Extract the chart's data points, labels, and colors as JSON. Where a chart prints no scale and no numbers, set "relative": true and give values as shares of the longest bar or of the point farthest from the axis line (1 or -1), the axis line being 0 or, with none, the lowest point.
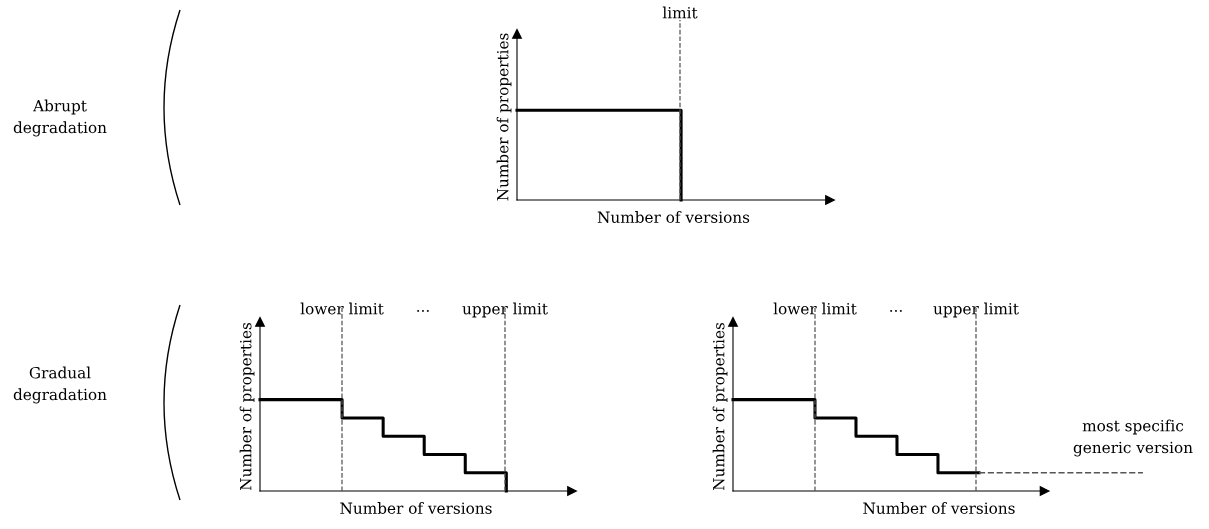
{
  "chart_data": [
    {
      "type": "step",
      "relative": true,
      "xlabel": "Number of versions",
      "ylabel": "Number of properties",
      "categories": [
        null,
        null,
        null,
        null,
        null
      ],
      "series": [
        {
          "color": "#000000",
          "values": [
            1,
            1,
            1,
            1,
            0
          ]
        }
      ],
      "annotations": [
        "Abrupt\ndegradation",
        "limit"
      ]
    },
    {
      "type": "step",
      "relative": true,
      "xlabel": "Number of versions",
      "ylabel": "Number of properties",
      "categories": [
        null,
        null,
        null,
        null,
        null,
        null,
        null
      ],
      "series": [
        {
          "color": "#000000",
          "values": [
            1,
            1,
            0.8,
            0.6,
            0.4,
            0.2,
            0
          ]
        }
      ],
      "annotations": [
        "Gradual\ndegradation",
        "lower limit",
        "···",
        "upper limit"
      ]
    },
    {
      "type": "step",
      "relative": true,
      "xlabel": "Number of versions",
      "ylabel": "Number of properties",
      "categories": [
        null,
        null,
        null,
        null,
        null,
        null,
        null,
        null,
        null,
        null,
        null
      ],
      "series": [
        {
          "color": "#000000",
          "values": [
            1,
            1,
            0.8,
            0.6,
            0.4,
            0.2,
            0.2,
            null,
            null,
            null,
            null
          ]
        },
        {
          "type": "line",
          "color": "#555555",
          "line_style": "dashed",
          "values": [
            null,
            null,
            null,
            null,
            null,
            null,
            0.2,
            0.2,
            0.2,
            0.2,
            0.2
          ]
        }
      ],
      "annotations": [
        "lower limit",
        "···",
        "upper limit",
        "most specific\ngeneric version"
      ]
    }
  ]
}
